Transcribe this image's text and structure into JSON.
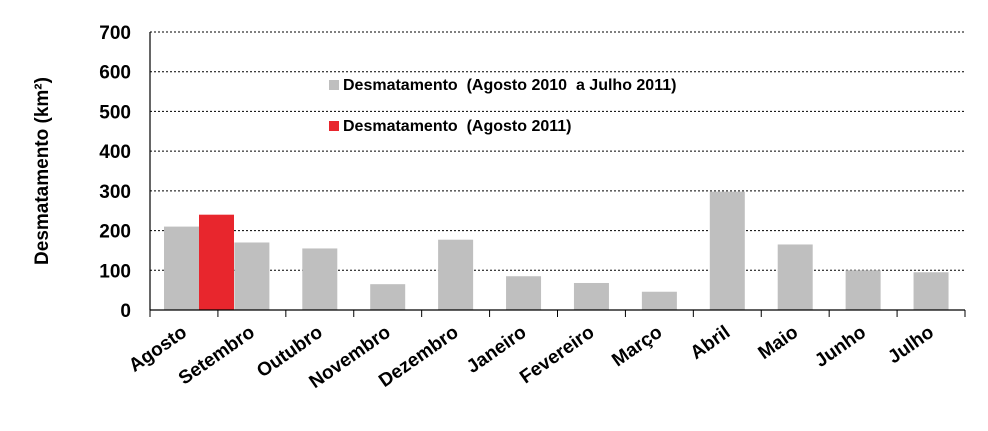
{
  "chart_data": {
    "type": "bar",
    "title": "",
    "xlabel": "",
    "ylabel": "Desmatamento (km²)",
    "ylim": [
      0,
      700
    ],
    "yticks": [
      0,
      100,
      200,
      300,
      400,
      500,
      600,
      700
    ],
    "grid": true,
    "legend_position": "top-left",
    "categories": [
      "Agosto",
      "Setembro",
      "Outubro",
      "Novembro",
      "Dezembro",
      "Janeiro",
      "Fevereiro",
      "Março",
      "Abril",
      "Maio",
      "Junho",
      "Julho"
    ],
    "series": [
      {
        "name": "Desmatamento  (Agosto 2010  a Julho 2011)",
        "color": "#bfbfbf",
        "values": [
          210,
          170,
          155,
          65,
          177,
          85,
          68,
          46,
          298,
          165,
          100,
          95
        ]
      },
      {
        "name": "Desmatamento  (Agosto 2011)",
        "color": "#e8262d",
        "values": [
          240,
          null,
          null,
          null,
          null,
          null,
          null,
          null,
          null,
          null,
          null,
          null
        ]
      }
    ]
  }
}
